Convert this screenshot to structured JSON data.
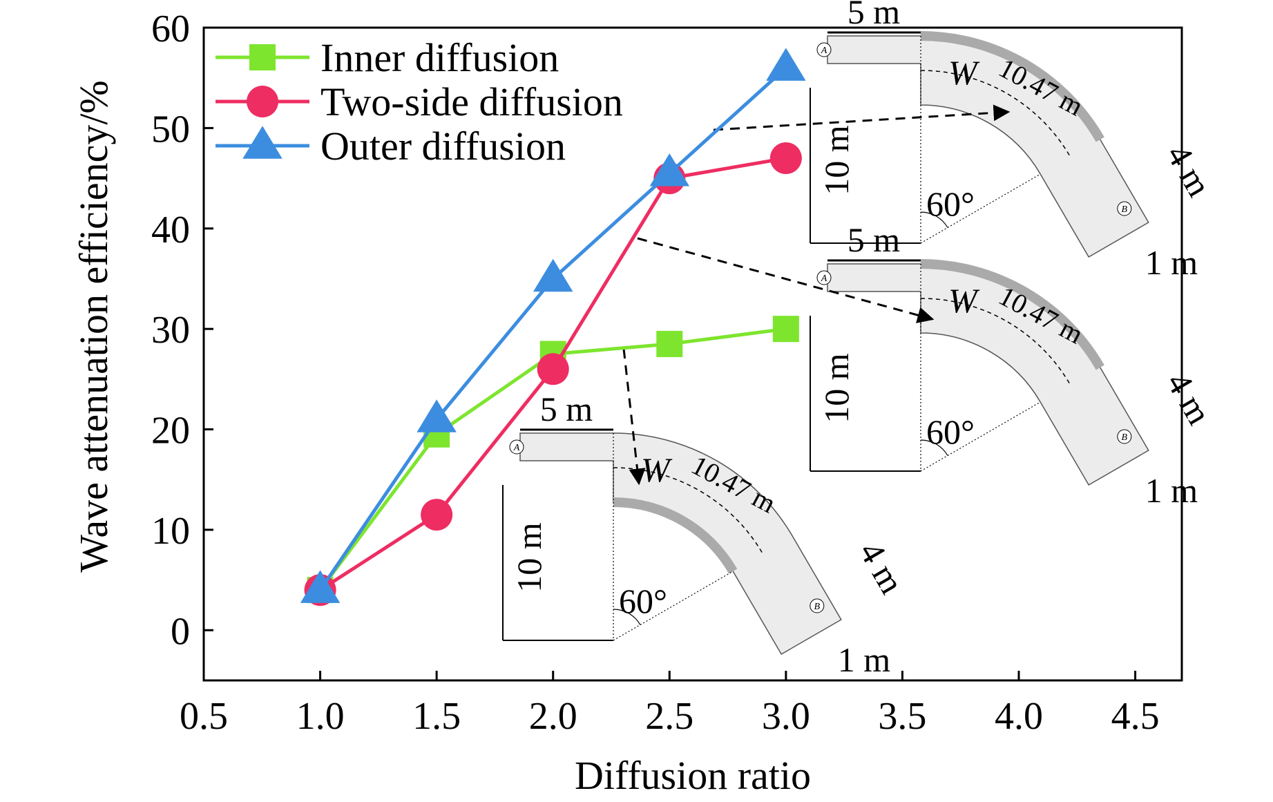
{
  "chart_data": {
    "type": "line",
    "xlabel": "Diffusion ratio",
    "ylabel": "Wave attenuation efficiency/%",
    "xlim": [
      0.5,
      4.7
    ],
    "ylim": [
      -5,
      60
    ],
    "xticks": [
      "0.5",
      "1.0",
      "1.5",
      "2.0",
      "2.5",
      "3.0",
      "3.5",
      "4.0",
      "4.5"
    ],
    "yticks": [
      "0",
      "10",
      "20",
      "30",
      "40",
      "50",
      "60"
    ],
    "grid": false,
    "legend": "top-left",
    "series": [
      {
        "name": "Inner diffusion",
        "marker": "square",
        "color": "#7ee52e",
        "x": [
          1.0,
          1.5,
          2.0,
          2.5,
          3.0
        ],
        "y": [
          4.0,
          19.5,
          27.5,
          28.5,
          30.0
        ]
      },
      {
        "name": "Two-side diffusion",
        "marker": "circle",
        "color": "#ee2d62",
        "x": [
          1.0,
          1.5,
          2.0,
          2.5,
          3.0
        ],
        "y": [
          4.0,
          11.5,
          26.0,
          45.0,
          47.0
        ]
      },
      {
        "name": "Outer diffusion",
        "marker": "triangle",
        "color": "#3c8de0",
        "x": [
          1.0,
          1.5,
          2.0,
          2.5,
          3.0
        ],
        "y": [
          4.0,
          21.0,
          35.0,
          45.5,
          56.0
        ]
      }
    ],
    "annotations": {
      "insets": [
        {
          "variant": "outer",
          "width_label": "5 m",
          "height_label": "10 m",
          "angle_label": "60°",
          "arc_label": "10.47 m",
          "exit_label": "4 m",
          "offset_label": "1 m",
          "w_label": "W",
          "point_a": "A",
          "point_b": "B"
        },
        {
          "variant": "two-side",
          "width_label": "5 m",
          "height_label": "10 m",
          "angle_label": "60°",
          "arc_label": "10.47 m",
          "exit_label": "4 m",
          "offset_label": "1 m",
          "w_label": "W",
          "point_a": "A",
          "point_b": "B"
        },
        {
          "variant": "inner",
          "width_label": "5 m",
          "height_label": "10 m",
          "angle_label": "60°",
          "arc_label": "10.47 m",
          "exit_label": "4 m",
          "offset_label": "1 m",
          "w_label": "W",
          "point_a": "A",
          "point_b": "B"
        }
      ]
    }
  }
}
